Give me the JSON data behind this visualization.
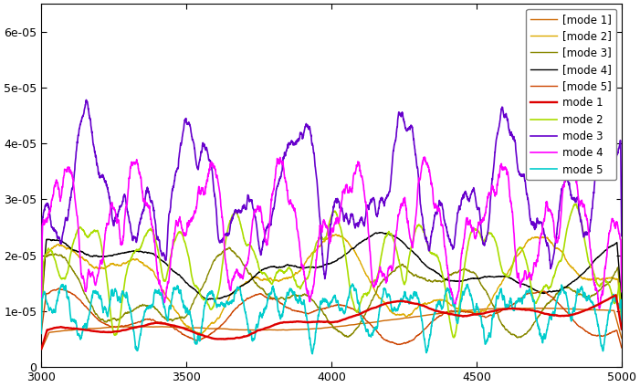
{
  "xlim": [
    3000,
    5000
  ],
  "ylim": [
    0,
    6.5e-05
  ],
  "ytick_vals": [
    0,
    1e-05,
    2e-05,
    3e-05,
    4e-05,
    5e-05,
    6e-05
  ],
  "ytick_labels": [
    "0",
    "1e-05",
    "2e-05",
    "3e-05",
    "4e-05",
    "5e-05",
    "6e-05"
  ],
  "xticks": [
    3000,
    3500,
    4000,
    4500,
    5000
  ],
  "legend_entries": [
    "mode 1",
    "mode 2",
    "mode 3",
    "mode 4",
    "mode 5",
    "[mode 1]",
    "[mode 2]",
    "[mode 3]",
    "[mode 4]",
    "[mode 5]"
  ],
  "colors": {
    "mode1": "#dd0000",
    "mode2": "#aadd00",
    "mode3": "#6600cc",
    "mode4": "#ff00ff",
    "mode5": "#00cccc",
    "bmode1": "#cc6600",
    "bmode2": "#ddaa00",
    "bmode3": "#888800",
    "bmode4": "#000000",
    "bmode5": "#cc4400"
  },
  "lw_main": 1.2,
  "lw_bracket": 1.0,
  "seed": 7
}
